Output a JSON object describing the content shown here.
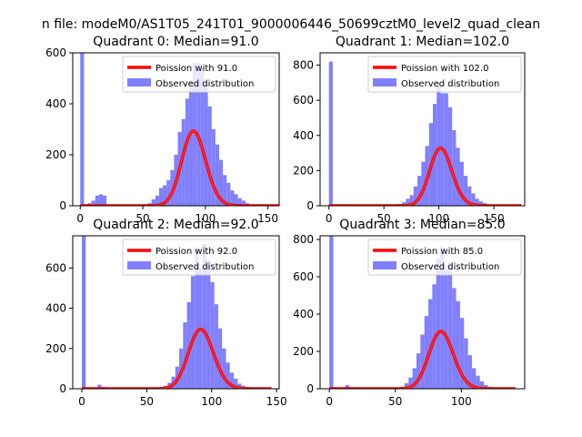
{
  "figure": {
    "suptitle": "n file: modeM0/AS1T05_241T01_9000006446_50699cztM0_level2_quad_clean"
  },
  "colors": {
    "hist": "#8080ff",
    "fit": "#ff0000",
    "frame": "#000000"
  },
  "chart_data": [
    {
      "type": "bar",
      "title": "Quadrant 0: Median=91.0",
      "xlim": [
        -6,
        159
      ],
      "ylim": [
        0,
        600
      ],
      "xticks": [
        0,
        50,
        100,
        150
      ],
      "yticks": [
        0,
        200,
        400,
        600
      ],
      "legend_location": "upper right",
      "bin_width": 3,
      "hist": {
        "name": "Observed distribution",
        "x": [
          0,
          3,
          6,
          9,
          12,
          15,
          18,
          21,
          24,
          27,
          30,
          33,
          36,
          39,
          42,
          45,
          48,
          51,
          54,
          57,
          60,
          63,
          66,
          69,
          72,
          75,
          78,
          81,
          84,
          87,
          90,
          93,
          96,
          99,
          102,
          105,
          108,
          111,
          114,
          117,
          120,
          123,
          126,
          129,
          132,
          135,
          138,
          141,
          144,
          147
        ],
        "values": [
          600,
          5,
          10,
          20,
          40,
          45,
          40,
          5,
          3,
          3,
          3,
          3,
          3,
          3,
          3,
          3,
          3,
          5,
          10,
          25,
          40,
          70,
          80,
          100,
          140,
          200,
          290,
          340,
          420,
          490,
          560,
          560,
          540,
          480,
          390,
          300,
          240,
          180,
          120,
          90,
          60,
          45,
          30,
          20,
          10,
          5,
          3,
          2,
          1,
          1
        ]
      },
      "fit": {
        "name": "Poission with 91.0",
        "lambda": 91.0,
        "scale": 7000,
        "x_range": [
          0,
          159
        ]
      }
    },
    {
      "type": "bar",
      "title": "Quadrant 1: Median=102.0",
      "xlim": [
        -8,
        178
      ],
      "ylim": [
        0,
        870
      ],
      "xticks": [
        0,
        50,
        100,
        150
      ],
      "yticks": [
        0,
        200,
        400,
        600,
        800
      ],
      "legend_location": "upper right",
      "bin_width": 3.5,
      "hist": {
        "name": "Observed distribution",
        "x": [
          0,
          63,
          66.5,
          70,
          73.5,
          77,
          80.5,
          84,
          87.5,
          91,
          94.5,
          98,
          101.5,
          105,
          108.5,
          112,
          115.5,
          119,
          122.5,
          126,
          129.5,
          133,
          136.5,
          140,
          143.5,
          147,
          150.5,
          154
        ],
        "values": [
          820,
          10,
          20,
          40,
          60,
          110,
          170,
          250,
          340,
          470,
          580,
          700,
          640,
          640,
          560,
          430,
          330,
          250,
          170,
          110,
          70,
          40,
          25,
          15,
          8,
          4,
          2,
          1
        ]
      },
      "fit": {
        "name": "Poission with 102.0",
        "lambda": 102.0,
        "scale": 8300,
        "x_range": [
          0,
          175
        ]
      }
    },
    {
      "type": "bar",
      "title": "Quadrant 2: Median=92.0",
      "xlim": [
        -7,
        152
      ],
      "ylim": [
        0,
        760
      ],
      "xticks": [
        0,
        50,
        100,
        150
      ],
      "yticks": [
        0,
        200,
        400,
        600
      ],
      "legend_location": "upper right",
      "bin_width": 3,
      "hist": {
        "name": "Observed distribution",
        "x": [
          0,
          12,
          15,
          60,
          63,
          66,
          69,
          72,
          75,
          78,
          81,
          84,
          87,
          90,
          93,
          96,
          99,
          102,
          105,
          108,
          111,
          114,
          117,
          120,
          123,
          126,
          129,
          132,
          135,
          138
        ],
        "values": [
          760,
          20,
          10,
          5,
          15,
          30,
          60,
          110,
          200,
          330,
          430,
          560,
          700,
          600,
          720,
          640,
          530,
          420,
          300,
          200,
          130,
          80,
          50,
          25,
          15,
          8,
          4,
          2,
          1,
          1
        ]
      },
      "fit": {
        "name": "Poission with 92.0",
        "lambda": 92.0,
        "scale": 7100,
        "x_range": [
          0,
          146
        ]
      }
    },
    {
      "type": "bar",
      "title": "Quadrant 3: Median=85.0",
      "xlim": [
        -7,
        148
      ],
      "ylim": [
        0,
        820
      ],
      "xticks": [
        0,
        50,
        100
      ],
      "yticks": [
        0,
        200,
        400,
        600,
        800
      ],
      "legend_location": "upper right",
      "bin_width": 3,
      "hist": {
        "name": "Observed distribution",
        "x": [
          0,
          12,
          15,
          51,
          54,
          57,
          60,
          63,
          66,
          69,
          72,
          75,
          78,
          81,
          84,
          87,
          90,
          93,
          96,
          99,
          102,
          105,
          108,
          111,
          114,
          117,
          120,
          123,
          126,
          129
        ],
        "values": [
          820,
          20,
          10,
          5,
          10,
          30,
          60,
          110,
          190,
          290,
          390,
          480,
          560,
          700,
          760,
          640,
          680,
          540,
          470,
          380,
          270,
          180,
          110,
          70,
          40,
          20,
          10,
          5,
          3,
          1
        ]
      },
      "fit": {
        "name": "Poission with 85.0",
        "lambda": 85.0,
        "scale": 7100,
        "x_range": [
          0,
          141
        ]
      }
    }
  ]
}
